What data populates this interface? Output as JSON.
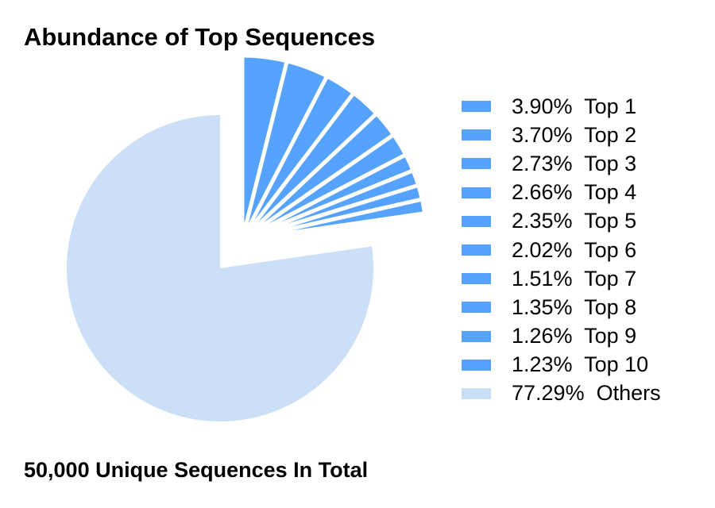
{
  "chart_data": {
    "type": "pie",
    "title": "Abundance of Top Sequences",
    "subtitle": "50,000 Unique Sequences In Total",
    "labels": [
      "Top 1",
      "Top 2",
      "Top 3",
      "Top 4",
      "Top 5",
      "Top 6",
      "Top 7",
      "Top 8",
      "Top 9",
      "Top 10",
      "Others"
    ],
    "values": [
      3.9,
      3.7,
      2.73,
      2.66,
      2.35,
      2.02,
      1.51,
      1.35,
      1.26,
      1.23,
      77.29
    ],
    "legend_text": [
      "3.90%  Top 1",
      "3.70%  Top 2",
      "2.73%  Top 3",
      "2.66%  Top 4",
      "2.35%  Top 5",
      "2.02%  Top 6",
      "1.51%  Top 7",
      "1.35%  Top 8",
      "1.26%  Top 9",
      "1.23%  Top 10",
      "77.29%  Others"
    ],
    "colors": {
      "top": "#55a2ff",
      "others": "#cbdff7"
    },
    "exploded_group": "Top 1 – Top 10",
    "legend_position": "right",
    "start_angle_deg": 0,
    "direction": "clockwise"
  }
}
